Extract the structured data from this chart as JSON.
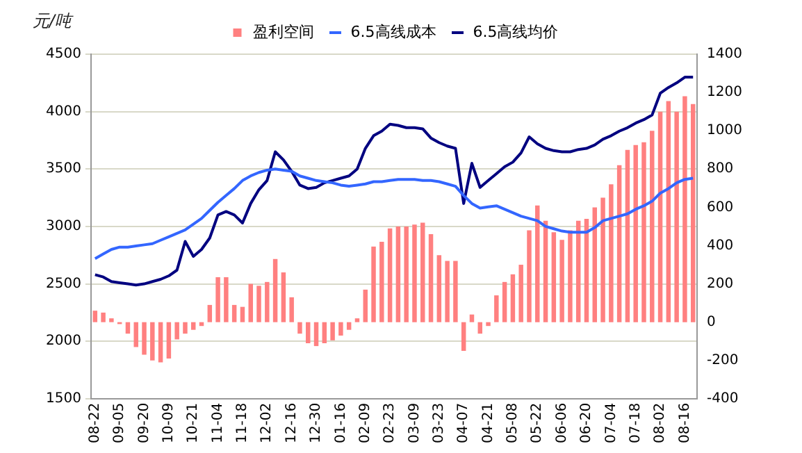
{
  "chart_data": {
    "type": "bar",
    "ylabel": "元/吨",
    "categories": [
      "08-22",
      null,
      null,
      "09-05",
      null,
      null,
      "09-20",
      null,
      null,
      "10-09",
      null,
      null,
      "10-21",
      null,
      null,
      "11-04",
      null,
      null,
      "11-18",
      null,
      null,
      "12-02",
      null,
      null,
      "12-16",
      null,
      null,
      "12-30",
      null,
      null,
      "01-16",
      null,
      null,
      "02-09",
      null,
      null,
      "02-23",
      null,
      null,
      "03-09",
      null,
      null,
      "03-23",
      null,
      null,
      "04-07",
      null,
      null,
      "04-21",
      null,
      null,
      "05-08",
      null,
      null,
      "05-22",
      null,
      null,
      "06-06",
      null,
      null,
      "06-20",
      null,
      null,
      "07-04",
      null,
      null,
      "07-18",
      null,
      null,
      "08-02",
      null,
      null,
      "08-16",
      null
    ],
    "series": [
      {
        "name": "盈利空间",
        "axis": "y2",
        "color": "#ff8080",
        "values": [
          60,
          50,
          20,
          -10,
          -60,
          -130,
          -170,
          -200,
          -210,
          -190,
          -90,
          -60,
          -40,
          -20,
          90,
          235,
          235,
          90,
          80,
          200,
          190,
          210,
          330,
          260,
          130,
          -60,
          -110,
          -125,
          -110,
          -95,
          -70,
          -40,
          20,
          170,
          395,
          420,
          490,
          500,
          500,
          510,
          520,
          460,
          350,
          320,
          320,
          -150,
          40,
          -60,
          -20,
          140,
          210,
          250,
          300,
          480,
          610,
          530,
          470,
          430,
          480,
          530,
          540,
          600,
          650,
          720,
          820,
          900,
          925,
          940,
          1000,
          1100,
          1155,
          1100,
          1180,
          1140
        ]
      },
      {
        "name": "6.5高线成本",
        "type": "line",
        "color": "#3366ff",
        "values": [
          2720,
          2760,
          2800,
          2820,
          2820,
          2830,
          2840,
          2850,
          2880,
          2910,
          2940,
          2970,
          3020,
          3070,
          3140,
          3210,
          3270,
          3330,
          3400,
          3440,
          3470,
          3490,
          3500,
          3490,
          3480,
          3440,
          3420,
          3400,
          3390,
          3380,
          3360,
          3350,
          3360,
          3370,
          3390,
          3390,
          3400,
          3410,
          3410,
          3410,
          3400,
          3400,
          3390,
          3370,
          3350,
          3270,
          3200,
          3160,
          3170,
          3180,
          3150,
          3120,
          3090,
          3070,
          3050,
          3000,
          2980,
          2960,
          2950,
          2950,
          2950,
          2990,
          3050,
          3070,
          3090,
          3110,
          3150,
          3180,
          3220,
          3290,
          3330,
          3380,
          3410,
          3420
        ]
      },
      {
        "name": "6.5高线均价",
        "type": "line",
        "color": "#000080",
        "values": [
          2580,
          2560,
          2520,
          2510,
          2500,
          2490,
          2500,
          2520,
          2540,
          2570,
          2620,
          2870,
          2740,
          2800,
          2900,
          3100,
          3130,
          3100,
          3030,
          3200,
          3320,
          3400,
          3650,
          3580,
          3480,
          3360,
          3330,
          3340,
          3380,
          3400,
          3420,
          3440,
          3500,
          3680,
          3790,
          3830,
          3890,
          3880,
          3860,
          3860,
          3850,
          3770,
          3730,
          3700,
          3680,
          3200,
          3550,
          3340,
          3400,
          3460,
          3520,
          3560,
          3640,
          3780,
          3720,
          3680,
          3660,
          3650,
          3650,
          3670,
          3680,
          3710,
          3760,
          3790,
          3830,
          3860,
          3900,
          3930,
          3970,
          4160,
          4210,
          4250,
          4300,
          4300
        ]
      }
    ],
    "ylim": [
      1500,
      4500
    ],
    "yticks": [
      1500,
      2000,
      2500,
      3000,
      3500,
      4000,
      4500
    ],
    "y2lim": [
      -400,
      1400
    ],
    "y2ticks": [
      -400,
      -200,
      0,
      200,
      400,
      600,
      800,
      1000,
      1200,
      1400
    ],
    "grid": "y",
    "legend": "top",
    "marker": "none",
    "line_style": "solid"
  }
}
